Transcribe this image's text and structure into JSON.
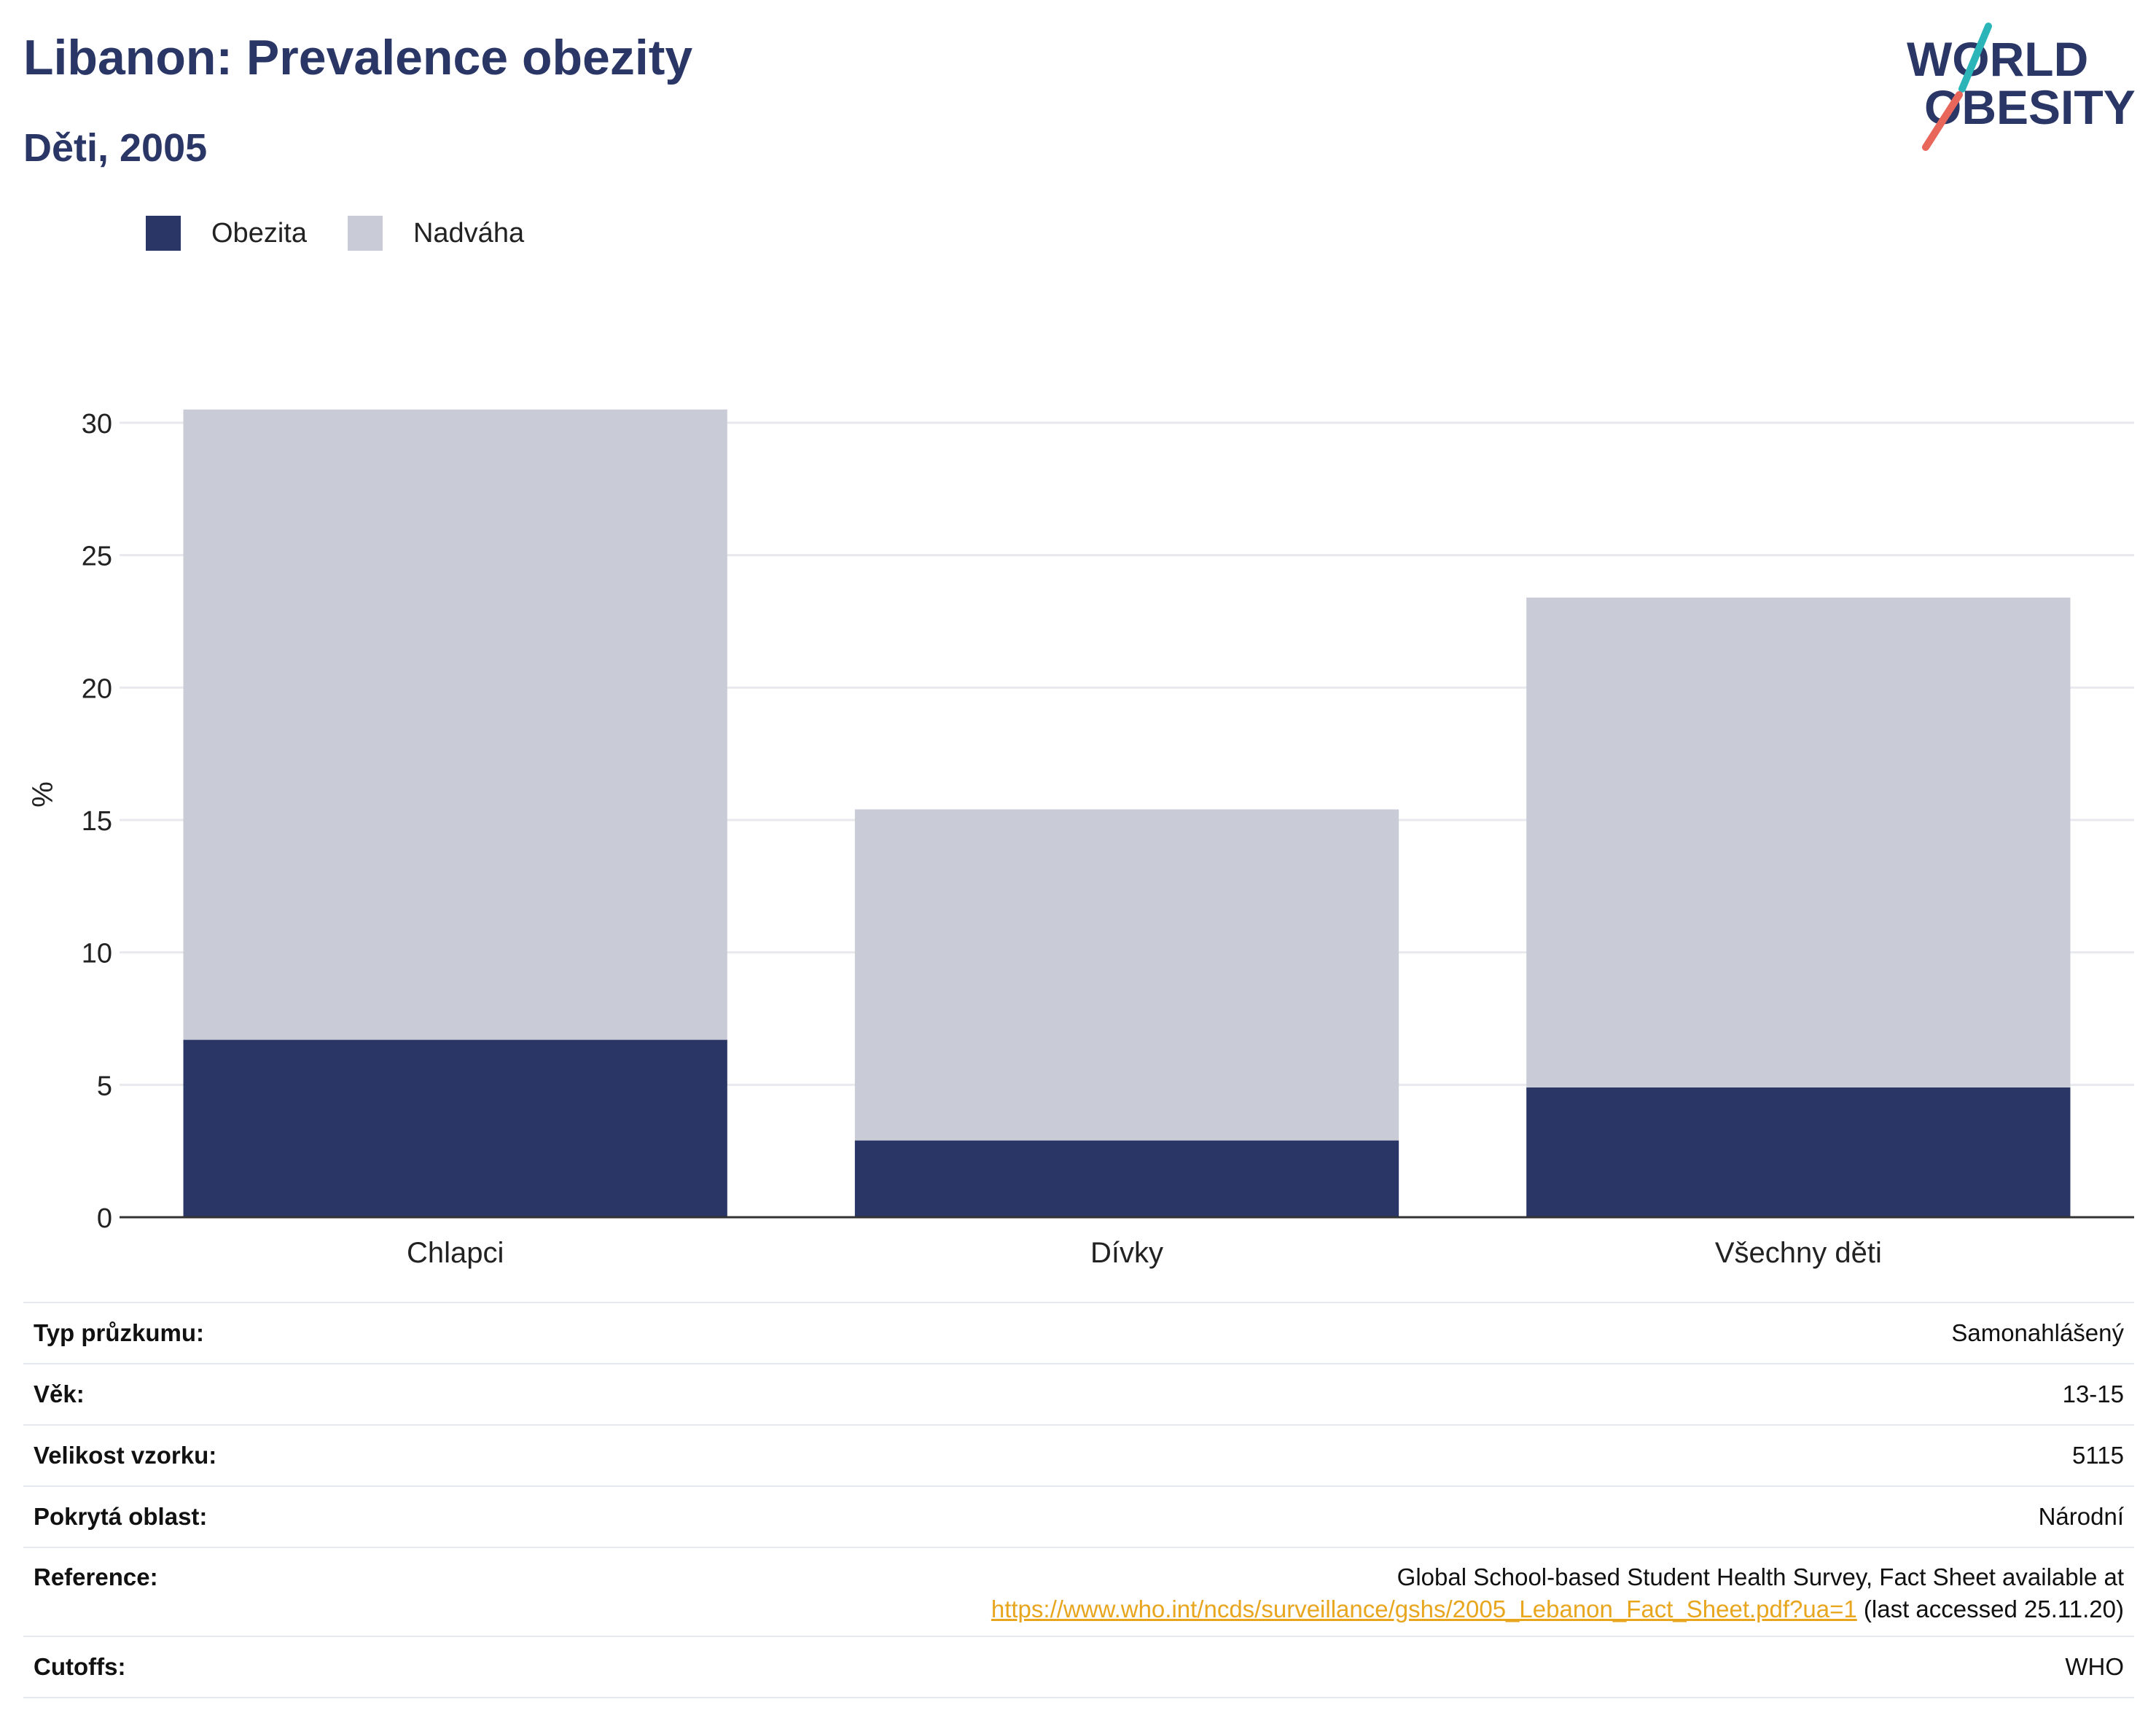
{
  "header": {
    "title": "Libanon: Prevalence obezity",
    "subtitle": "Děti, 2005"
  },
  "logo": {
    "line1": "WORLD",
    "line2": "OBESITY",
    "text_color": "#2a3665",
    "slash_color_top": "#2bb5b8",
    "slash_color_bottom": "#e8665a"
  },
  "legend": {
    "items": [
      {
        "label": "Obezita",
        "color": "#2a3665"
      },
      {
        "label": "Nadváha",
        "color": "#c9ccd7"
      }
    ]
  },
  "chart_data": {
    "type": "bar",
    "stacked": true,
    "title": "Libanon: Prevalence obezity",
    "subtitle": "Děti, 2005",
    "ylabel": "%",
    "xlabel": "",
    "categories": [
      "Chlapci",
      "Dívky",
      "Všechny děti"
    ],
    "series": [
      {
        "name": "Obezita",
        "color": "#2a3665",
        "values": [
          6.7,
          2.9,
          4.9
        ]
      },
      {
        "name": "Nadváha",
        "color": "#c9ccd7",
        "values": [
          23.8,
          12.5,
          18.5
        ]
      }
    ],
    "ylim": [
      0,
      30
    ],
    "yticks": [
      0,
      5,
      10,
      15,
      20,
      25,
      30
    ],
    "grid": true,
    "legend_position": "top-left"
  },
  "info": {
    "rows": [
      {
        "label": "Typ průzkumu:",
        "value": "Samonahlášený"
      },
      {
        "label": "Věk:",
        "value": "13-15"
      },
      {
        "label": "Velikost vzorku:",
        "value": "5115"
      },
      {
        "label": "Pokrytá oblast:",
        "value": "Národní"
      }
    ],
    "reference": {
      "label": "Reference:",
      "line1": "Global School-based Student Health Survey, Fact Sheet available at",
      "link": "https://www.who.int/ncds/surveillance/gshs/2005_Lebanon_Fact_Sheet.pdf?ua=1",
      "suffix": " (last accessed 25.11.20)"
    },
    "cutoffs": {
      "label": "Cutoffs:",
      "value": "WHO"
    }
  }
}
